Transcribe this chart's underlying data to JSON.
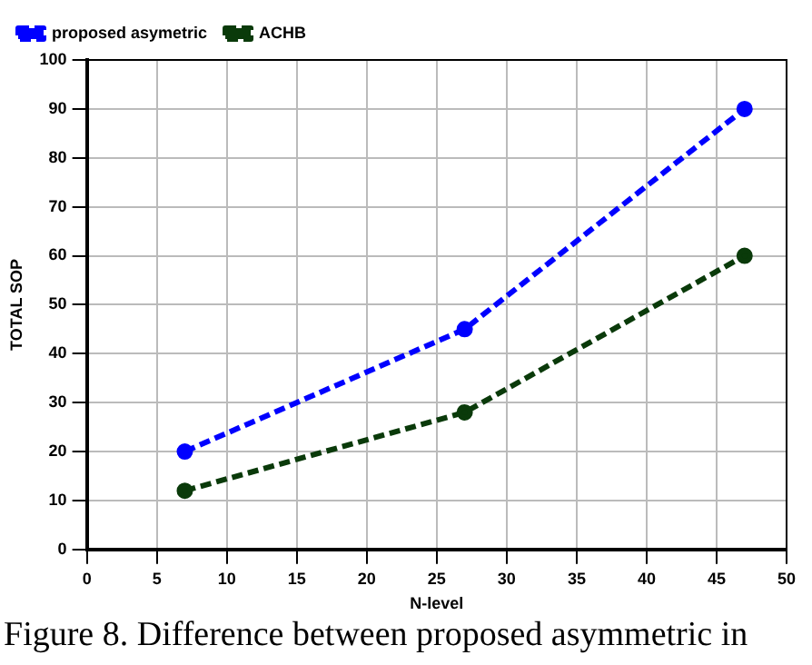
{
  "chart_data": {
    "type": "line",
    "xlabel": "N-level",
    "ylabel": "TOTAL SOP",
    "x": [
      7,
      27,
      47
    ],
    "series": [
      {
        "name": "proposed asymetric",
        "color": "#0000ff",
        "values": [
          20,
          45,
          90
        ]
      },
      {
        "name": "ACHB",
        "color": "#0a3a0a",
        "values": [
          12,
          28,
          60
        ]
      }
    ],
    "xlim": [
      0,
      50
    ],
    "xticks": [
      0,
      5,
      10,
      15,
      20,
      25,
      30,
      35,
      40,
      45,
      50
    ],
    "ylim": [
      0,
      100
    ],
    "yticks": [
      0,
      10,
      20,
      30,
      40,
      50,
      60,
      70,
      80,
      90,
      100
    ],
    "grid": true,
    "legend": "top left",
    "marker": "circle",
    "line_style": "dashed",
    "annotations": [
      "Figure 8.  Difference between proposed asymmetric in"
    ]
  }
}
